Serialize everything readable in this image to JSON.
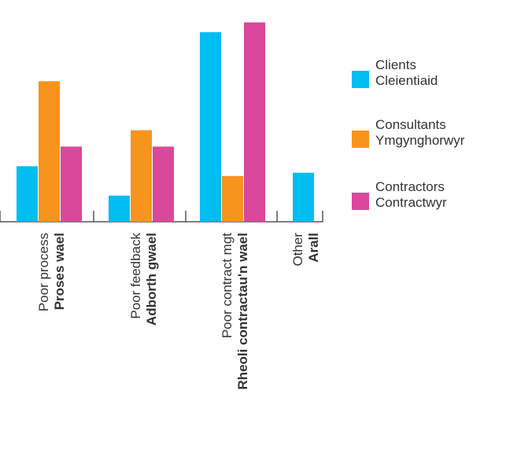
{
  "chart_data": {
    "type": "bar",
    "categories": [
      {
        "en": "Poor process",
        "cy": "Proses wael"
      },
      {
        "en": "Poor feedback",
        "cy": "Adborth gwael"
      },
      {
        "en": "Poor contract mgt",
        "cy": "Rheoli contractau'n wael"
      },
      {
        "en": "Other",
        "cy": "Arall"
      }
    ],
    "series": [
      {
        "name": "Clients",
        "name_cy": "Cleientiaid",
        "color": "#00bdf2",
        "values": [
          17,
          8,
          58,
          15
        ]
      },
      {
        "name": "Consultants",
        "name_cy": "Ymgynghorwyr",
        "color": "#f7941d",
        "values": [
          43,
          28,
          14,
          null
        ]
      },
      {
        "name": "Contractors",
        "name_cy": "Contractwyr",
        "color": "#d9489b",
        "values": [
          23,
          23,
          61,
          null
        ]
      }
    ],
    "ylim": [
      0,
      64
    ],
    "grid": false,
    "legend_position": "right"
  }
}
